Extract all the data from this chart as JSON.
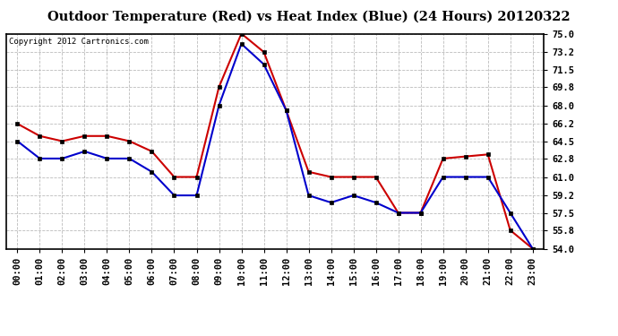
{
  "title": "Outdoor Temperature (Red) vs Heat Index (Blue) (24 Hours) 20120322",
  "copyright": "Copyright 2012 Cartronics.com",
  "hours": [
    0,
    1,
    2,
    3,
    4,
    5,
    6,
    7,
    8,
    9,
    10,
    11,
    12,
    13,
    14,
    15,
    16,
    17,
    18,
    19,
    20,
    21,
    22,
    23
  ],
  "hour_labels": [
    "00:00",
    "01:00",
    "02:00",
    "03:00",
    "04:00",
    "05:00",
    "06:00",
    "07:00",
    "08:00",
    "09:00",
    "10:00",
    "11:00",
    "12:00",
    "13:00",
    "14:00",
    "15:00",
    "16:00",
    "17:00",
    "18:00",
    "19:00",
    "20:00",
    "21:00",
    "22:00",
    "23:00"
  ],
  "temp_red": [
    66.2,
    65.0,
    64.5,
    65.0,
    65.0,
    64.5,
    63.5,
    61.0,
    61.0,
    69.8,
    75.0,
    73.2,
    67.5,
    61.5,
    61.0,
    61.0,
    61.0,
    57.5,
    57.5,
    62.8,
    63.0,
    63.2,
    55.8,
    54.0
  ],
  "heat_blue": [
    64.5,
    62.8,
    62.8,
    63.5,
    62.8,
    62.8,
    61.5,
    59.2,
    59.2,
    68.0,
    74.0,
    72.0,
    67.5,
    59.2,
    58.5,
    59.2,
    58.5,
    57.5,
    57.5,
    61.0,
    61.0,
    61.0,
    57.5,
    54.0
  ],
  "ylim_min": 54.0,
  "ylim_max": 75.0,
  "yticks": [
    54.0,
    55.8,
    57.5,
    59.2,
    61.0,
    62.8,
    64.5,
    66.2,
    68.0,
    69.8,
    71.5,
    73.2,
    75.0
  ],
  "red_color": "#cc0000",
  "blue_color": "#0000cc",
  "background_color": "#ffffff",
  "grid_color": "#bbbbbb",
  "title_fontsize": 10.5,
  "copyright_fontsize": 6.5,
  "tick_fontsize": 7.5
}
